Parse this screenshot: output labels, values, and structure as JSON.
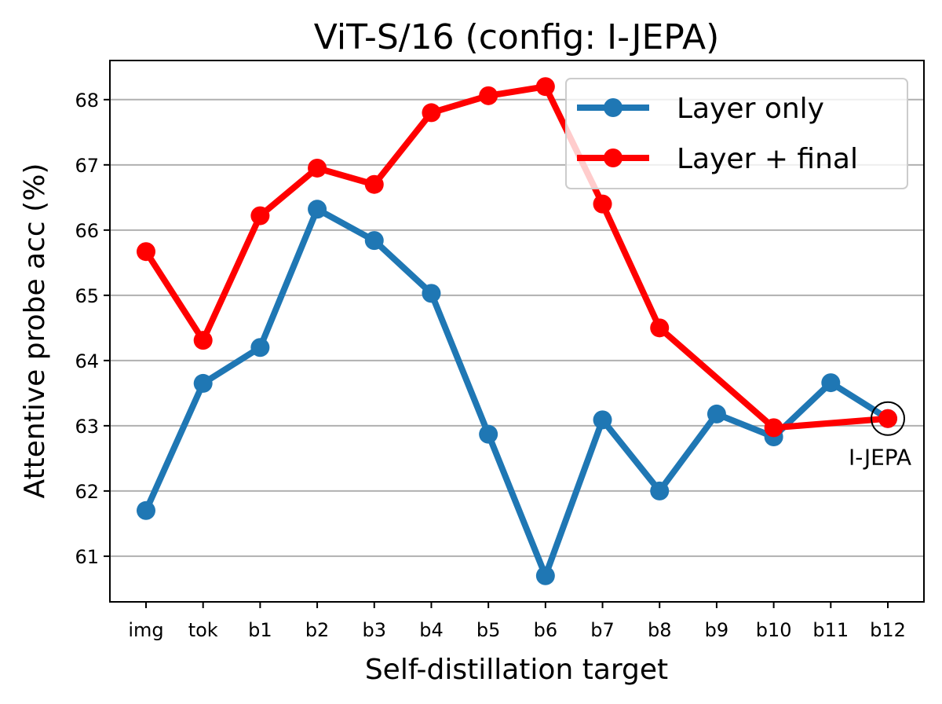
{
  "chart_data": {
    "type": "line",
    "title": "ViT-S/16 (config: I-JEPA)",
    "xlabel": "Self-distillation target",
    "ylabel": "Attentive probe acc (%)",
    "categories": [
      "img",
      "tok",
      "b1",
      "b2",
      "b3",
      "b4",
      "b5",
      "b6",
      "b7",
      "b8",
      "b9",
      "b10",
      "b11",
      "b12"
    ],
    "yticks": [
      61,
      62,
      63,
      64,
      65,
      66,
      67,
      68
    ],
    "ylim": [
      60.3,
      68.6
    ],
    "grid": "horizontal",
    "legend_position": "top-right",
    "series": [
      {
        "name": "Layer only",
        "color": "#1f77b4",
        "values": [
          61.7,
          63.65,
          64.2,
          66.32,
          65.84,
          65.03,
          62.87,
          60.7,
          63.09,
          62.0,
          63.18,
          62.83,
          63.66,
          63.11
        ]
      },
      {
        "name": "Layer + final",
        "color": "#ff0000",
        "values": [
          65.67,
          64.31,
          66.22,
          66.95,
          66.7,
          67.8,
          68.06,
          68.2,
          66.4,
          64.5,
          null,
          62.97,
          null,
          63.11
        ]
      }
    ],
    "annotations": [
      {
        "text": "I-JEPA",
        "category": "b12",
        "value": 63.11
      }
    ]
  }
}
